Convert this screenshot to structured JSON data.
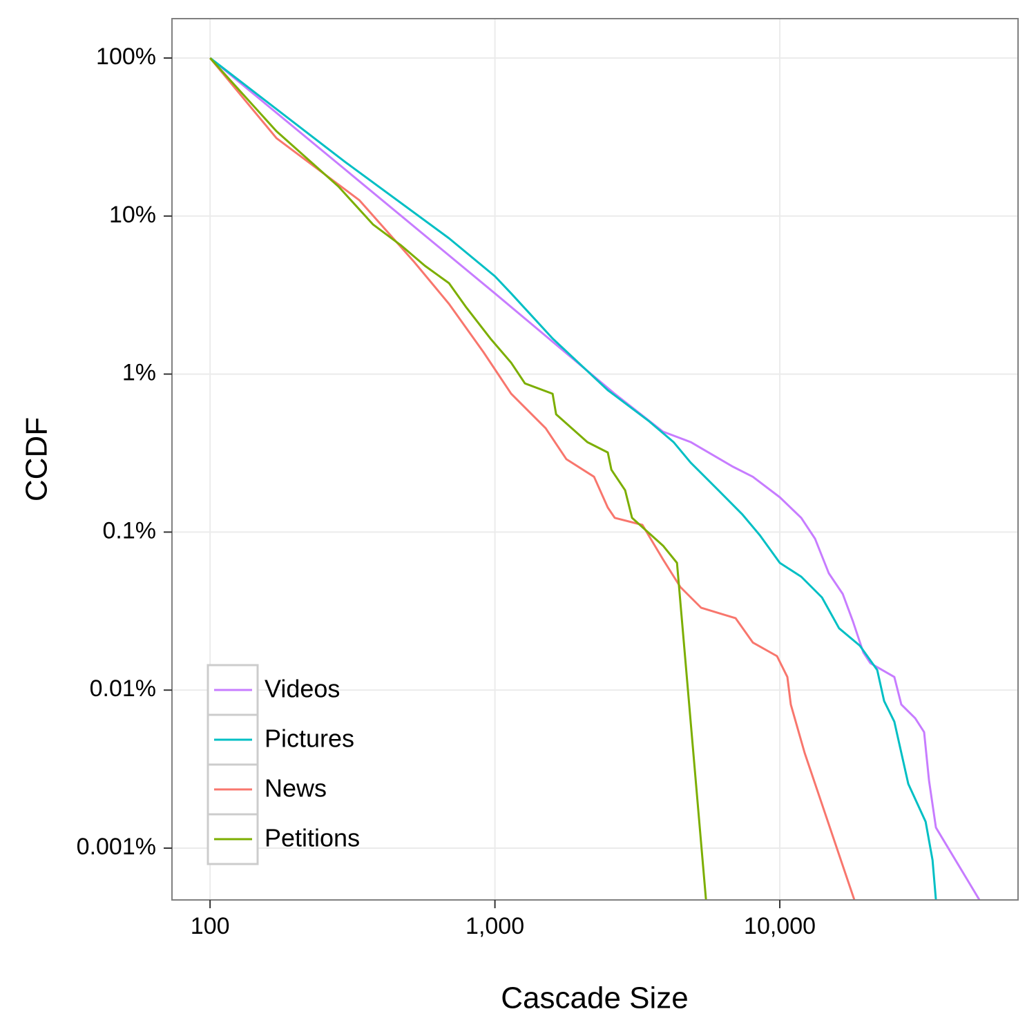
{
  "chart_data": {
    "type": "line",
    "xlabel": "Cascade Size",
    "ylabel": "CCDF",
    "xlog": true,
    "ylog": true,
    "grid": true,
    "legend": "bottom-left",
    "xlim": [
      73.5,
      68600
    ],
    "ylim": [
      0.00047,
      177.5
    ],
    "xticks": [
      100,
      {
        "value": 1000,
        "label": "1,000"
      },
      {
        "value": 10000,
        "label": "10,000"
      }
    ],
    "yticks": [
      {
        "value": 0.001,
        "label": "0.001%"
      },
      {
        "value": 0.01,
        "label": "0.01%"
      },
      {
        "value": 0.1,
        "label": "0.1%"
      },
      {
        "value": 1,
        "label": "1%"
      },
      {
        "value": 10,
        "label": "10%"
      },
      {
        "value": 100,
        "label": "100%"
      }
    ],
    "series": [
      {
        "name": "Videos",
        "color": "#C77CFF",
        "x": [
          100,
          299,
          1000,
          2634,
          3891,
          4867,
          6802,
          8041,
          10000,
          11890,
          13300,
          14860,
          16630,
          18070,
          19640,
          20800,
          25240,
          26700,
          29870,
          32110,
          33400,
          35320,
          50200
        ],
        "values": [
          100,
          19.6,
          3.24,
          0.75,
          0.432,
          0.371,
          0.261,
          0.224,
          0.166,
          0.123,
          0.0908,
          0.0549,
          0.0406,
          0.0272,
          0.0173,
          0.0148,
          0.0121,
          0.0081,
          0.00664,
          0.00542,
          0.00268,
          0.00135,
          0.00047
        ]
      },
      {
        "name": "Pictures",
        "color": "#00BFC4",
        "x": [
          100,
          299,
          690,
          1000,
          1140,
          1594,
          2490,
          3480,
          4236,
          4867,
          6085,
          7400,
          8510,
          10000,
          11890,
          14060,
          16150,
          19100,
          21980,
          23240,
          25240,
          28250,
          32500,
          34360,
          35320
        ],
        "values": [
          100,
          21.9,
          7.23,
          4.16,
          3.24,
          1.68,
          0.791,
          0.502,
          0.371,
          0.275,
          0.184,
          0.129,
          0.0955,
          0.0638,
          0.0522,
          0.0386,
          0.0246,
          0.0191,
          0.0134,
          0.00853,
          0.00631,
          0.00255,
          0.00147,
          0.00084,
          0.00047
        ]
      },
      {
        "name": "News",
        "color": "#F8766D",
        "x": [
          100,
          171,
          334,
          522,
          690,
          912,
          1140,
          1507,
          1782,
          2228,
          2490,
          2634,
          3294,
          3891,
          4477,
          5296,
          6998,
          8041,
          9775,
          10630,
          10930,
          12220,
          18270
        ],
        "values": [
          100,
          31.1,
          12.6,
          5.09,
          2.78,
          1.375,
          0.751,
          0.454,
          0.289,
          0.224,
          0.143,
          0.123,
          0.111,
          0.0671,
          0.0449,
          0.0332,
          0.0285,
          0.02,
          0.0164,
          0.0121,
          0.0081,
          0.00401,
          0.00047
        ]
      },
      {
        "name": "Petitions",
        "color": "#7CAE00",
        "x": [
          100,
          171,
          282,
          373,
          467,
          568,
          690,
          793,
          964,
          1140,
          1274,
          1594,
          1640,
          2110,
          2490,
          2563,
          2864,
          3028,
          3891,
          4355,
          5508
        ],
        "values": [
          100,
          34.4,
          15.4,
          8.85,
          6.55,
          4.84,
          3.76,
          2.64,
          1.68,
          1.18,
          0.873,
          0.751,
          0.556,
          0.371,
          0.319,
          0.248,
          0.184,
          0.123,
          0.082,
          0.0638,
          0.00047
        ]
      }
    ]
  }
}
